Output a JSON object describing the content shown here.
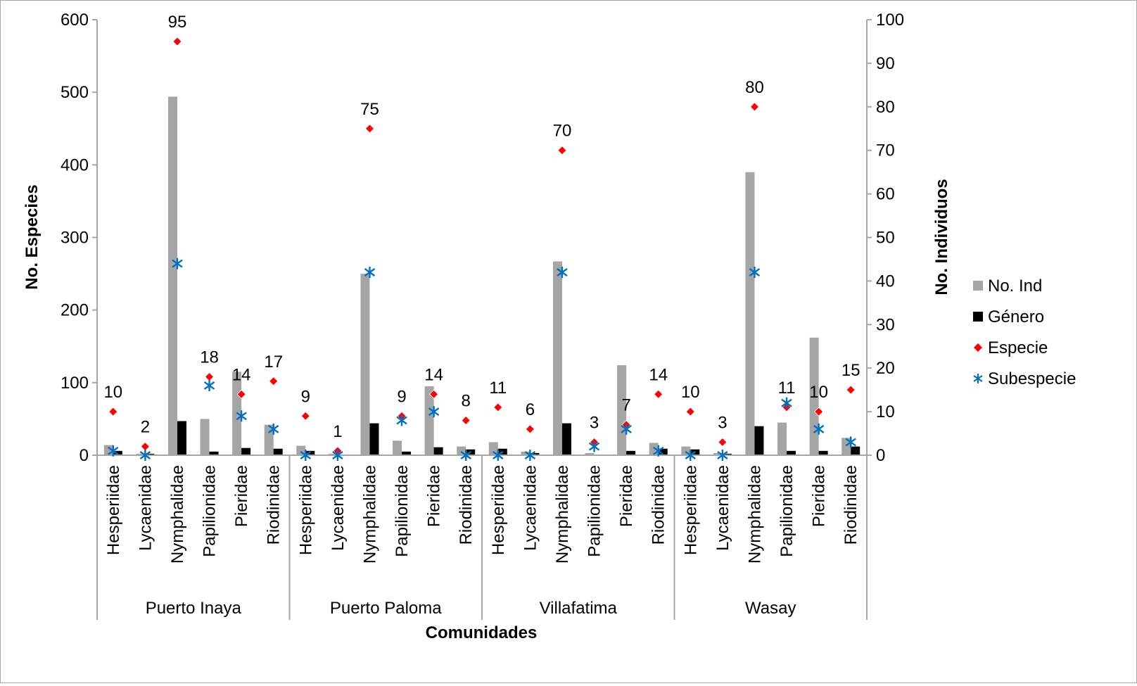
{
  "chart_data": {
    "type": "bar",
    "title": "",
    "xlabel": "Comunidades",
    "ylabel": "No. Especies",
    "y2label": "No. Individuos",
    "ylim": [
      0,
      600
    ],
    "y2lim": [
      0,
      100
    ],
    "yticks": [
      "0",
      "100",
      "200",
      "300",
      "400",
      "500",
      "600"
    ],
    "y2ticks": [
      "0",
      "10",
      "20",
      "30",
      "40",
      "50",
      "60",
      "70",
      "80",
      "90",
      "100"
    ],
    "grid": false,
    "legend_position": "right",
    "groups": [
      {
        "name": "Puerto Inaya",
        "categories": [
          "Hesperiidae",
          "Lycaenidae",
          "Nymphalidae",
          "Papilionidae",
          "Pieridae",
          "Riodinidae"
        ]
      },
      {
        "name": "Puerto Paloma",
        "categories": [
          "Hesperiidae",
          "Lycaenidae",
          "Nymphalidae",
          "Papilionidae",
          "Pieridae",
          "Riodinidae"
        ]
      },
      {
        "name": "Villafatima",
        "categories": [
          "Hesperiidae",
          "Lycaenidae",
          "Nymphalidae",
          "Papilionidae",
          "Pieridae",
          "Riodinidae"
        ]
      },
      {
        "name": "Wasay",
        "categories": [
          "Hesperiidae",
          "Lycaenidae",
          "Nymphalidae",
          "Papilionidae",
          "Pieridae",
          "Riodinidae"
        ]
      }
    ],
    "series": [
      {
        "name": "No. Ind",
        "type": "bar",
        "axis": "left",
        "color": "#a5a5a5",
        "values": [
          14,
          2,
          494,
          50,
          115,
          42,
          13,
          2,
          250,
          20,
          95,
          12,
          18,
          5,
          267,
          3,
          124,
          17,
          12,
          3,
          390,
          45,
          162,
          24
        ]
      },
      {
        "name": "Género",
        "type": "bar",
        "axis": "left",
        "color": "#000000",
        "values": [
          6,
          2,
          47,
          5,
          10,
          9,
          6,
          1,
          44,
          5,
          11,
          8,
          9,
          3,
          44,
          1,
          6,
          9,
          8,
          2,
          40,
          6,
          6,
          12
        ]
      },
      {
        "name": "Especie",
        "type": "scatter",
        "marker": "diamond",
        "axis": "right",
        "color": "#ff0000",
        "values": [
          10,
          2,
          95,
          18,
          14,
          17,
          9,
          1,
          75,
          9,
          14,
          8,
          11,
          6,
          70,
          3,
          7,
          14,
          10,
          3,
          80,
          11,
          10,
          15
        ],
        "data_labels": true
      },
      {
        "name": "Subespecie",
        "type": "scatter",
        "marker": "asterisk",
        "axis": "right",
        "color": "#0070c0",
        "values": [
          1,
          0,
          44,
          16,
          9,
          6,
          0,
          0,
          42,
          8,
          10,
          0,
          0,
          0,
          42,
          2,
          6,
          1,
          0,
          0,
          42,
          12,
          6,
          3
        ]
      }
    ]
  }
}
